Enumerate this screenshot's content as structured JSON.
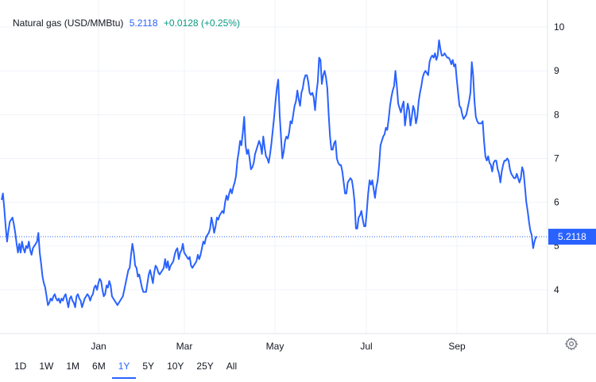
{
  "header": {
    "symbol": "Natural gas (USD/MMBtu)",
    "last": "5.2118",
    "change": "+0.0128 (+0.25%)"
  },
  "range_buttons": [
    "1D",
    "1W",
    "1M",
    "6M",
    "1Y",
    "5Y",
    "10Y",
    "25Y",
    "All"
  ],
  "active_range": "1Y",
  "price_label": "5.2118",
  "colors": {
    "line": "#2962ff",
    "grid": "#f0f3fa",
    "up": "#089981",
    "axis_text": "#131722"
  },
  "icons": {
    "settings": "gear-icon"
  },
  "chart_data": {
    "type": "line",
    "series": [
      {
        "values": [
          6.05,
          6.2,
          5.85,
          5.45,
          5.1,
          5.35,
          5.55,
          5.6,
          5.65,
          5.5,
          5.3,
          5.05,
          4.85,
          5.05,
          4.85,
          5.1,
          4.95,
          4.85,
          5.0,
          4.95,
          5.1,
          4.9,
          4.8,
          4.95,
          5.0,
          5.05,
          5.1,
          5.3,
          4.85,
          4.6,
          4.3,
          4.15,
          4.05,
          3.85,
          3.65,
          3.7,
          3.8,
          3.75,
          3.85,
          3.9,
          3.8,
          3.75,
          3.8,
          3.7,
          3.8,
          3.75,
          3.85,
          3.9,
          3.75,
          3.6,
          3.8,
          3.85,
          3.75,
          3.7,
          3.6,
          3.85,
          3.9,
          3.8,
          3.75,
          3.6,
          3.7,
          3.8,
          3.85,
          3.9,
          3.85,
          3.75,
          3.85,
          3.9,
          4.05,
          4.1,
          4.0,
          4.15,
          4.25,
          4.2,
          4.0,
          3.85,
          3.9,
          4.1,
          4.05,
          4.2,
          4.1,
          3.85,
          3.8,
          3.75,
          3.7,
          3.65,
          3.7,
          3.75,
          3.8,
          3.85,
          4.0,
          4.15,
          4.3,
          4.45,
          4.5,
          4.8,
          5.05,
          4.85,
          4.55,
          4.5,
          4.3,
          4.35,
          4.2,
          4.05,
          3.95,
          3.95,
          3.95,
          4.15,
          4.35,
          4.45,
          4.3,
          4.15,
          4.4,
          4.55,
          4.5,
          4.4,
          4.35,
          4.4,
          4.45,
          4.5,
          4.7,
          4.5,
          4.65,
          4.45,
          4.55,
          4.6,
          4.65,
          4.8,
          4.9,
          4.95,
          4.7,
          4.85,
          4.9,
          5.05,
          4.85,
          4.8,
          4.75,
          4.7,
          4.75,
          4.55,
          4.5,
          4.55,
          4.6,
          4.65,
          4.8,
          4.7,
          4.8,
          4.95,
          5.1,
          5.05,
          5.2,
          5.25,
          5.3,
          5.4,
          5.65,
          5.5,
          5.3,
          5.45,
          5.65,
          5.6,
          5.7,
          5.75,
          5.8,
          5.75,
          6.0,
          6.15,
          6.05,
          6.2,
          6.3,
          6.2,
          6.35,
          6.45,
          6.6,
          6.95,
          7.15,
          7.4,
          7.3,
          7.6,
          7.95,
          7.3,
          7.1,
          7.2,
          7.0,
          6.75,
          6.8,
          6.9,
          7.1,
          7.2,
          7.3,
          7.4,
          7.3,
          7.1,
          7.5,
          7.25,
          7.05,
          7.0,
          6.9,
          7.1,
          7.35,
          7.65,
          7.95,
          8.3,
          8.6,
          8.8,
          8.0,
          7.5,
          7.0,
          7.15,
          7.4,
          7.5,
          7.45,
          7.6,
          7.85,
          7.8,
          8.0,
          8.2,
          8.3,
          8.55,
          8.35,
          8.2,
          8.5,
          8.6,
          8.8,
          8.9,
          8.9,
          8.75,
          8.5,
          8.45,
          8.5,
          8.4,
          8.1,
          8.5,
          8.75,
          9.3,
          9.25,
          8.7,
          8.9,
          9.0,
          8.85,
          8.6,
          8.0,
          7.5,
          7.2,
          7.2,
          7.35,
          7.4,
          7.0,
          6.9,
          6.85,
          6.85,
          6.7,
          6.45,
          6.2,
          6.2,
          6.45,
          6.5,
          6.55,
          6.5,
          6.3,
          6.0,
          5.4,
          5.4,
          5.65,
          5.7,
          5.8,
          5.6,
          5.45,
          5.45,
          5.8,
          6.2,
          6.5,
          6.4,
          6.5,
          6.3,
          6.1,
          6.35,
          6.5,
          6.85,
          7.3,
          7.4,
          7.5,
          7.55,
          7.7,
          7.65,
          7.9,
          8.2,
          8.4,
          8.55,
          8.65,
          9.0,
          8.65,
          8.25,
          8.15,
          8.05,
          8.2,
          8.3,
          7.75,
          8.0,
          8.25,
          8.1,
          7.75,
          7.95,
          8.2,
          8.1,
          7.8,
          7.95,
          8.3,
          8.5,
          8.65,
          8.85,
          8.95,
          9.0,
          8.95,
          8.9,
          9.2,
          9.3,
          9.35,
          9.3,
          9.4,
          9.25,
          9.35,
          9.7,
          9.5,
          9.35,
          9.35,
          9.4,
          9.35,
          9.3,
          9.3,
          9.25,
          9.15,
          9.25,
          9.1,
          9.15,
          8.8,
          8.5,
          8.2,
          8.15,
          8.0,
          7.9,
          7.95,
          8.0,
          8.15,
          8.3,
          8.5,
          9.2,
          8.9,
          8.3,
          7.95,
          7.85,
          7.8,
          7.8,
          7.8,
          7.85,
          7.4,
          7.05,
          6.95,
          7.05,
          6.9,
          6.85,
          6.7,
          6.9,
          6.95,
          6.95,
          6.75,
          6.65,
          6.45,
          6.7,
          6.85,
          6.95,
          6.95,
          7.0,
          6.95,
          6.75,
          6.65,
          6.6,
          6.55,
          6.55,
          6.65,
          6.55,
          6.45,
          6.55,
          6.8,
          6.7,
          6.35,
          6.0,
          5.8,
          5.55,
          5.35,
          5.25,
          4.95,
          5.1,
          5.2,
          5.2118
        ]
      }
    ],
    "x_tick_labels": [
      "Jan",
      "Mar",
      "May",
      "Jul",
      "Sep"
    ],
    "y_tick_labels": [
      4,
      5,
      6,
      7,
      8,
      9,
      10
    ],
    "ylim": [
      3.0,
      10.4
    ],
    "last_value": 5.2118,
    "grid": true
  }
}
